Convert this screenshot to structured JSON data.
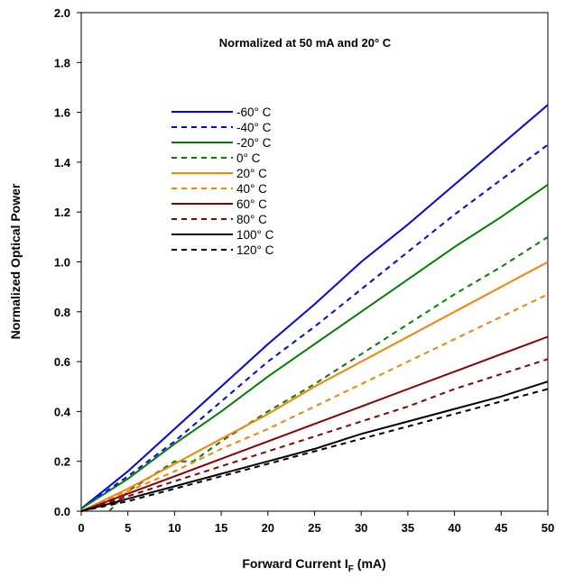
{
  "chart_data": {
    "type": "line",
    "annotation": "Normalized at 50 mA and 20° C",
    "xlabel": "Forward Current I",
    "xlabel_sub": "F",
    "xlabel_unit": " (mA)",
    "ylabel": "Normalized Optical Power",
    "xlim": [
      0,
      50
    ],
    "ylim": [
      0,
      2.0
    ],
    "xticks": [
      "0",
      "5",
      "10",
      "15",
      "20",
      "25",
      "30",
      "35",
      "40",
      "45",
      "50"
    ],
    "yticks": [
      "0.0",
      "0.2",
      "0.4",
      "0.6",
      "0.8",
      "1.0",
      "1.2",
      "1.4",
      "1.6",
      "1.8",
      "2.0"
    ],
    "grid": false,
    "legend_position": "upper-left, inside plot",
    "series": [
      {
        "name": "-60° C",
        "color": "#0000ff",
        "dash": "solid",
        "points": [
          [
            0,
            0.01
          ],
          [
            5,
            0.16
          ],
          [
            10,
            0.33
          ],
          [
            15,
            0.5
          ],
          [
            20,
            0.67
          ],
          [
            25,
            0.83
          ],
          [
            30,
            1.0
          ],
          [
            35,
            1.15
          ],
          [
            40,
            1.31
          ],
          [
            45,
            1.47
          ],
          [
            50,
            1.63
          ]
        ]
      },
      {
        "name": "-40° C",
        "color": "#0000ff",
        "dash": "dashed",
        "points": [
          [
            0,
            0.01
          ],
          [
            5,
            0.14
          ],
          [
            10,
            0.28
          ],
          [
            15,
            0.44
          ],
          [
            20,
            0.6
          ],
          [
            25,
            0.74
          ],
          [
            30,
            0.89
          ],
          [
            35,
            1.04
          ],
          [
            40,
            1.19
          ],
          [
            45,
            1.33
          ],
          [
            50,
            1.47
          ]
        ]
      },
      {
        "name": "-20° C",
        "color": "#008000",
        "dash": "solid",
        "points": [
          [
            0,
            0.01
          ],
          [
            5,
            0.13
          ],
          [
            10,
            0.27
          ],
          [
            15,
            0.4
          ],
          [
            20,
            0.54
          ],
          [
            25,
            0.67
          ],
          [
            30,
            0.8
          ],
          [
            35,
            0.93
          ],
          [
            40,
            1.06
          ],
          [
            45,
            1.18
          ],
          [
            50,
            1.31
          ]
        ]
      },
      {
        "name": "0° C",
        "color": "#008000",
        "dash": "dashed",
        "points": [
          [
            3,
            0.0
          ],
          [
            5,
            0.08
          ],
          [
            10,
            0.2
          ],
          [
            12,
            0.2
          ],
          [
            15,
            0.28
          ],
          [
            20,
            0.4
          ],
          [
            25,
            0.51
          ],
          [
            30,
            0.63
          ],
          [
            35,
            0.75
          ],
          [
            40,
            0.87
          ],
          [
            45,
            0.98
          ],
          [
            50,
            1.1
          ]
        ]
      },
      {
        "name": "20° C",
        "color": "#ff7f00",
        "dash": "solid",
        "points": [
          [
            0,
            0.0
          ],
          [
            5,
            0.09
          ],
          [
            10,
            0.19
          ],
          [
            15,
            0.29
          ],
          [
            20,
            0.39
          ],
          [
            25,
            0.5
          ],
          [
            30,
            0.6
          ],
          [
            35,
            0.7
          ],
          [
            40,
            0.8
          ],
          [
            45,
            0.9
          ],
          [
            50,
            1.0
          ]
        ]
      },
      {
        "name": "40° C",
        "color": "#ff7f00",
        "dash": "dashed",
        "points": [
          [
            0,
            0.0
          ],
          [
            5,
            0.08
          ],
          [
            10,
            0.16
          ],
          [
            15,
            0.25
          ],
          [
            20,
            0.33
          ],
          [
            25,
            0.42
          ],
          [
            30,
            0.51
          ],
          [
            35,
            0.6
          ],
          [
            40,
            0.69
          ],
          [
            45,
            0.78
          ],
          [
            50,
            0.87
          ]
        ]
      },
      {
        "name": "60° C",
        "color": "#8b0000",
        "dash": "solid",
        "points": [
          [
            0,
            0.0
          ],
          [
            5,
            0.07
          ],
          [
            10,
            0.14
          ],
          [
            15,
            0.21
          ],
          [
            20,
            0.28
          ],
          [
            25,
            0.35
          ],
          [
            30,
            0.42
          ],
          [
            35,
            0.49
          ],
          [
            40,
            0.56
          ],
          [
            45,
            0.63
          ],
          [
            50,
            0.7
          ]
        ]
      },
      {
        "name": "80° C",
        "color": "#8b0000",
        "dash": "dashed",
        "points": [
          [
            0,
            0.0
          ],
          [
            5,
            0.06
          ],
          [
            10,
            0.12
          ],
          [
            15,
            0.18
          ],
          [
            20,
            0.24
          ],
          [
            25,
            0.3
          ],
          [
            30,
            0.36
          ],
          [
            35,
            0.42
          ],
          [
            40,
            0.49
          ],
          [
            45,
            0.55
          ],
          [
            50,
            0.61
          ]
        ]
      },
      {
        "name": "100° C",
        "color": "#000000",
        "dash": "solid",
        "points": [
          [
            0,
            0.0
          ],
          [
            5,
            0.05
          ],
          [
            10,
            0.1
          ],
          [
            15,
            0.15
          ],
          [
            20,
            0.2
          ],
          [
            25,
            0.25
          ],
          [
            30,
            0.31
          ],
          [
            35,
            0.36
          ],
          [
            40,
            0.41
          ],
          [
            45,
            0.46
          ],
          [
            50,
            0.52
          ]
        ]
      },
      {
        "name": "120° C",
        "color": "#000000",
        "dash": "dashed",
        "points": [
          [
            0,
            0.0
          ],
          [
            5,
            0.04
          ],
          [
            10,
            0.09
          ],
          [
            15,
            0.14
          ],
          [
            20,
            0.19
          ],
          [
            25,
            0.24
          ],
          [
            30,
            0.29
          ],
          [
            35,
            0.34
          ],
          [
            40,
            0.39
          ],
          [
            45,
            0.44
          ],
          [
            50,
            0.49
          ]
        ]
      }
    ]
  }
}
